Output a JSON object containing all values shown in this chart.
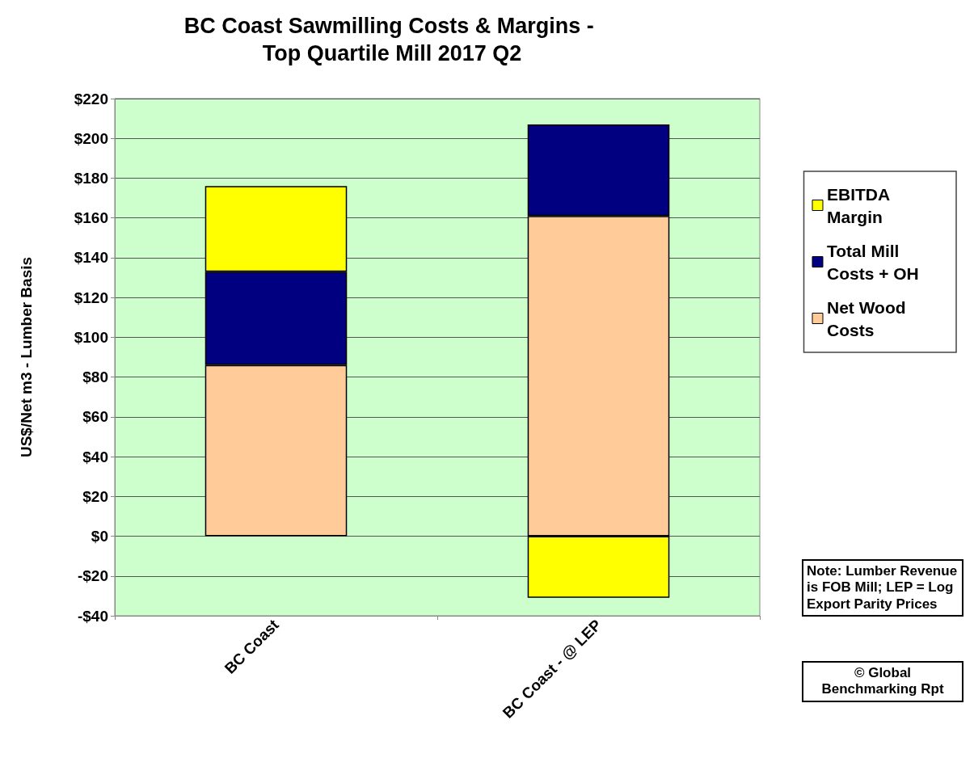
{
  "chart_data": {
    "type": "bar",
    "title": "BC Coast Sawmilling Costs & Margins - Top Quartile Mill 2017 Q2",
    "ylabel": "US$/Net m3 - Lumber Basis",
    "categories": [
      "BC Coast",
      "BC Coast - @ LEP"
    ],
    "stacked": true,
    "series": [
      {
        "name": "Net Wood Costs",
        "color": "#ffcc99",
        "values": [
          86,
          161
        ]
      },
      {
        "name": "Total Mill Costs + OH",
        "color": "#000080",
        "values": [
          47,
          46
        ]
      },
      {
        "name": "EBITDA Margin",
        "color": "#ffff00",
        "values": [
          43,
          -31
        ]
      }
    ],
    "ylim": [
      -40,
      220
    ],
    "yticks": [
      {
        "value": -40,
        "label": "-$40"
      },
      {
        "value": -20,
        "label": "-$20"
      },
      {
        "value": 0,
        "label": "$0"
      },
      {
        "value": 20,
        "label": "$20"
      },
      {
        "value": 40,
        "label": "$40"
      },
      {
        "value": 60,
        "label": "$60"
      },
      {
        "value": 80,
        "label": "$80"
      },
      {
        "value": 100,
        "label": "$100"
      },
      {
        "value": 120,
        "label": "$120"
      },
      {
        "value": 140,
        "label": "$140"
      },
      {
        "value": 160,
        "label": "$160"
      },
      {
        "value": 180,
        "label": "$180"
      },
      {
        "value": 200,
        "label": "$200"
      },
      {
        "value": 220,
        "label": "$220"
      }
    ],
    "grid": true,
    "legend": "right",
    "annotations": [
      "Note: Lumber Revenue is FOB Mill; LEP = Log Export Parity Prices",
      "© Global Benchmarking Rpt"
    ]
  }
}
